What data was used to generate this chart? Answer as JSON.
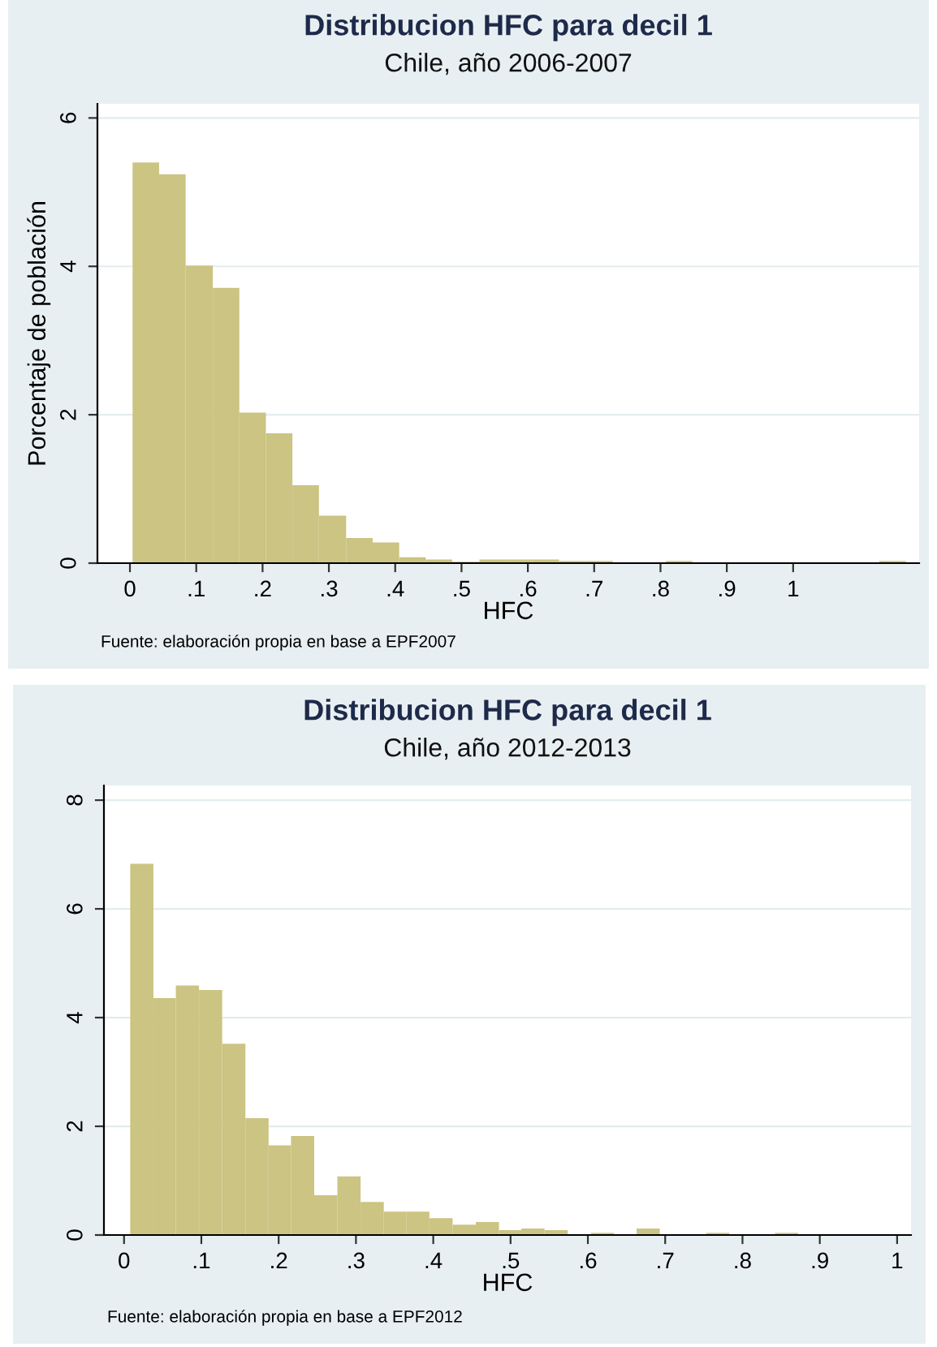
{
  "chart_data": [
    {
      "type": "histogram",
      "title": "Distribucion HFC para decil 1",
      "subtitle": "Chile, año 2006-2007",
      "xlabel": "HFC",
      "ylabel": "Porcentaje de población",
      "annotations": [
        "Fuente: elaboración propia en base a EPF2007"
      ],
      "bins": [
        0.004,
        0.044,
        0.084,
        0.125,
        0.165,
        0.205,
        0.245,
        0.285,
        0.326,
        0.366,
        0.406,
        0.446,
        0.486,
        0.527,
        0.567,
        0.607,
        0.647,
        0.687,
        0.728,
        0.808,
        0.848,
        1.13,
        1.17
      ],
      "values": [
        5.4,
        5.24,
        4.01,
        3.71,
        2.03,
        1.75,
        1.05,
        0.64,
        0.34,
        0.28,
        0.08,
        0.05,
        0.02,
        0.05,
        0.05,
        0.05,
        0.03,
        0.03,
        0,
        0.03,
        0,
        0.03
      ],
      "color": "#cbc482",
      "xlim": [
        -0.049,
        1.19
      ],
      "ylim": [
        0,
        6.19
      ],
      "xticks": [
        0,
        {
          "value": 0.1,
          "label": ".1"
        },
        {
          "value": 0.2,
          "label": ".2"
        },
        {
          "value": 0.3,
          "label": ".3"
        },
        {
          "value": 0.4,
          "label": ".4"
        },
        {
          "value": 0.5,
          "label": ".5"
        },
        {
          "value": 0.6,
          "label": ".6"
        },
        {
          "value": 0.7,
          "label": ".7"
        },
        {
          "value": 0.8,
          "label": ".8"
        },
        {
          "value": 0.9,
          "label": ".9"
        },
        1
      ],
      "yticks": [
        0,
        2,
        4,
        6
      ],
      "grid": "y"
    },
    {
      "type": "histogram",
      "title": "Distribucion HFC para decil 1",
      "subtitle": "Chile, año 2012-2013",
      "xlabel": "HFC",
      "annotations": [
        "Fuente: elaboración propia en base a EPF2012"
      ],
      "bins": [
        0.008,
        0.038,
        0.067,
        0.097,
        0.127,
        0.157,
        0.187,
        0.216,
        0.246,
        0.276,
        0.306,
        0.336,
        0.365,
        0.395,
        0.425,
        0.455,
        0.485,
        0.514,
        0.544,
        0.574,
        0.604,
        0.634,
        0.663,
        0.693,
        0.753,
        0.783,
        0.842,
        0.872
      ],
      "values": [
        6.83,
        4.36,
        4.59,
        4.51,
        3.52,
        2.15,
        1.65,
        1.82,
        0.73,
        1.08,
        0.61,
        0.43,
        0.43,
        0.31,
        0.19,
        0.24,
        0.09,
        0.12,
        0.09,
        0,
        0.04,
        0,
        0.12,
        0,
        0.04,
        0,
        0.04
      ],
      "color": "#cbc482",
      "xlim": [
        -0.026,
        1.018
      ],
      "ylim": [
        0,
        8.27
      ],
      "xticks": [
        0,
        {
          "value": 0.1,
          "label": ".1"
        },
        {
          "value": 0.2,
          "label": ".2"
        },
        {
          "value": 0.3,
          "label": ".3"
        },
        {
          "value": 0.4,
          "label": ".4"
        },
        {
          "value": 0.5,
          "label": ".5"
        },
        {
          "value": 0.6,
          "label": ".6"
        },
        {
          "value": 0.7,
          "label": ".7"
        },
        {
          "value": 0.8,
          "label": ".8"
        },
        {
          "value": 0.9,
          "label": ".9"
        },
        1
      ],
      "yticks": [
        0,
        2,
        4,
        6,
        8
      ],
      "grid": "y"
    }
  ]
}
